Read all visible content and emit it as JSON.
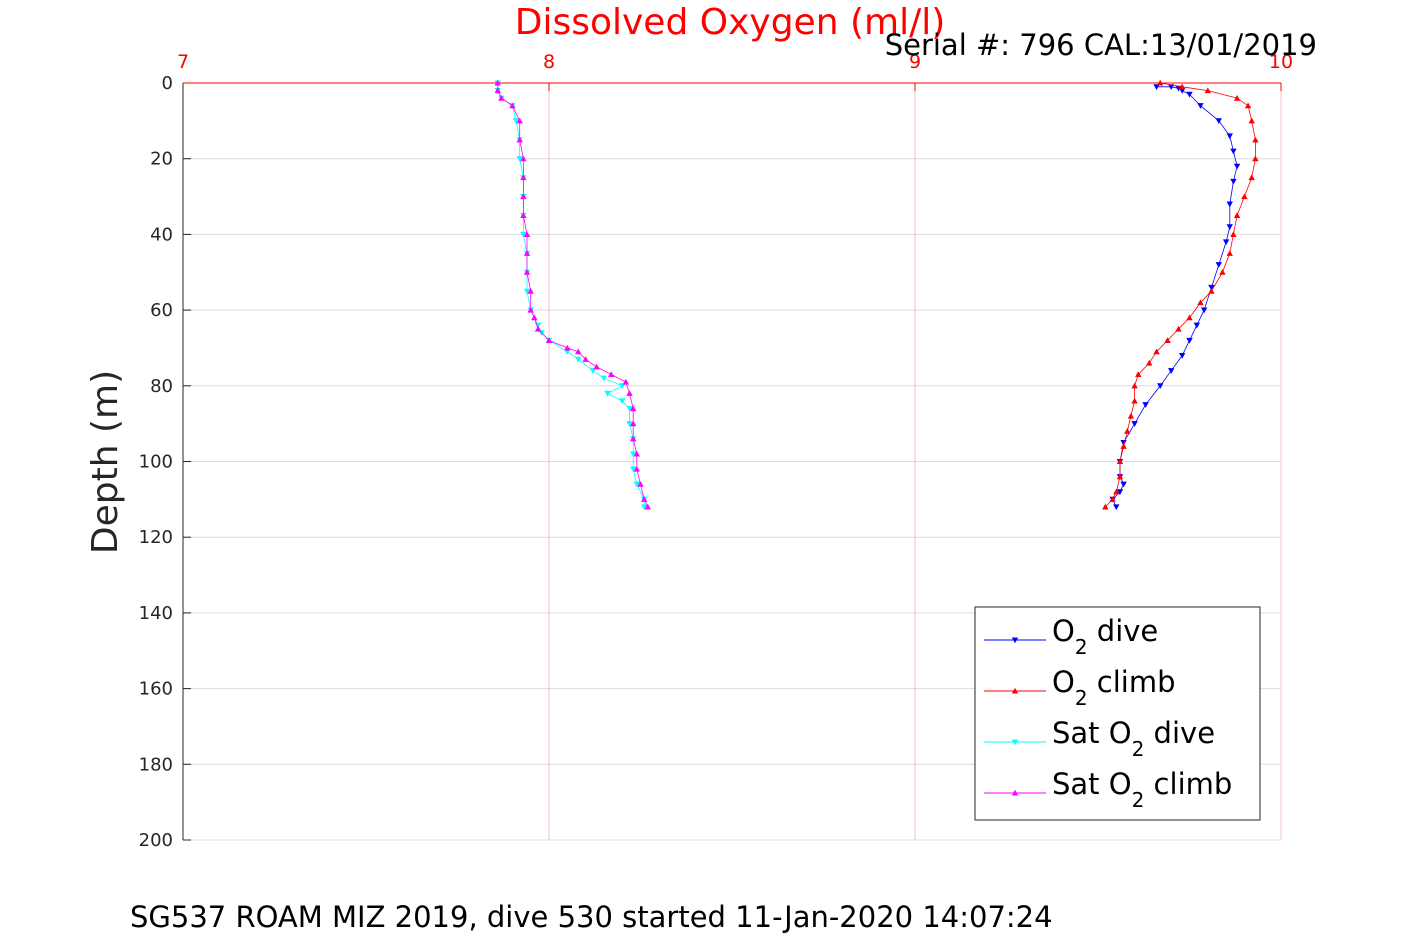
{
  "chart_data": {
    "type": "line",
    "title": "Dissolved Oxygen (ml/l)",
    "subtitle": "Serial #: 796  CAL:13/01/2019",
    "caption": "SG537 ROAM MIZ 2019, dive 530 started 11-Jan-2020 14:07:24",
    "ylabel": "Depth (m)",
    "xlabel": "",
    "xlim": [
      7,
      10
    ],
    "ylim": [
      0,
      200
    ],
    "y_reversed": true,
    "x_axis_position": "top",
    "grid": true,
    "legend_position": "bottom-right",
    "x_ticks": [
      "7",
      "8",
      "9",
      "10"
    ],
    "y_ticks": [
      "0",
      "20",
      "40",
      "60",
      "80",
      "100",
      "120",
      "140",
      "160",
      "180",
      "200"
    ],
    "colors": {
      "title": "#ff0000",
      "x_ticks": "#ff0000",
      "x_grid": "#ffc0c0",
      "y_grid": "#dcdcdc"
    },
    "series": [
      {
        "name": "O2 dive",
        "legend_main": "O",
        "legend_sub": "2",
        "legend_rest": " dive",
        "color": "#0000ff",
        "marker": "triangle-down",
        "points": [
          [
            9.66,
            1.0
          ],
          [
            9.7,
            1.0
          ],
          [
            9.72,
            1.4
          ],
          [
            9.73,
            2.0
          ],
          [
            9.75,
            3.0
          ],
          [
            9.78,
            6.0
          ],
          [
            9.83,
            10.0
          ],
          [
            9.86,
            14.0
          ],
          [
            9.87,
            18.0
          ],
          [
            9.88,
            22.0
          ],
          [
            9.87,
            26.0
          ],
          [
            9.86,
            32.0
          ],
          [
            9.86,
            38.0
          ],
          [
            9.85,
            42.0
          ],
          [
            9.83,
            48.0
          ],
          [
            9.81,
            54.0
          ],
          [
            9.79,
            60.0
          ],
          [
            9.77,
            64.0
          ],
          [
            9.75,
            68.0
          ],
          [
            9.73,
            72.0
          ],
          [
            9.7,
            76.0
          ],
          [
            9.67,
            80.0
          ],
          [
            9.63,
            85.0
          ],
          [
            9.6,
            90.0
          ],
          [
            9.57,
            95.0
          ],
          [
            9.56,
            100.0
          ],
          [
            9.56,
            104.0
          ],
          [
            9.57,
            106.0
          ],
          [
            9.56,
            108.0
          ],
          [
            9.54,
            110.0
          ],
          [
            9.55,
            112.0
          ]
        ]
      },
      {
        "name": "O2 climb",
        "legend_main": "O",
        "legend_sub": "2",
        "legend_rest": " climb",
        "color": "#ff0000",
        "marker": "triangle-up",
        "points": [
          [
            9.52,
            112.0
          ],
          [
            9.54,
            110.0
          ],
          [
            9.55,
            108.0
          ],
          [
            9.56,
            104.0
          ],
          [
            9.56,
            100.0
          ],
          [
            9.57,
            96.0
          ],
          [
            9.58,
            92.0
          ],
          [
            9.59,
            88.0
          ],
          [
            9.6,
            84.0
          ],
          [
            9.6,
            80.0
          ],
          [
            9.61,
            77.0
          ],
          [
            9.64,
            74.0
          ],
          [
            9.66,
            71.0
          ],
          [
            9.69,
            68.0
          ],
          [
            9.72,
            65.0
          ],
          [
            9.75,
            62.0
          ],
          [
            9.78,
            58.0
          ],
          [
            9.81,
            55.0
          ],
          [
            9.84,
            50.0
          ],
          [
            9.86,
            45.0
          ],
          [
            9.87,
            40.0
          ],
          [
            9.88,
            35.0
          ],
          [
            9.9,
            30.0
          ],
          [
            9.92,
            25.0
          ],
          [
            9.93,
            20.0
          ],
          [
            9.93,
            15.0
          ],
          [
            9.92,
            10.0
          ],
          [
            9.91,
            6.0
          ],
          [
            9.88,
            4.0
          ],
          [
            9.8,
            2.0
          ],
          [
            9.73,
            1.0
          ],
          [
            9.67,
            0.0
          ]
        ]
      },
      {
        "name": "Sat O2 dive",
        "legend_main": "Sat O",
        "legend_sub": "2",
        "legend_rest": " dive",
        "color": "#00ffff",
        "marker": "triangle-down",
        "points": [
          [
            7.86,
            0.0
          ],
          [
            7.86,
            2.0
          ],
          [
            7.87,
            4.0
          ],
          [
            7.9,
            6.0
          ],
          [
            7.91,
            10.0
          ],
          [
            7.92,
            15.0
          ],
          [
            7.92,
            20.0
          ],
          [
            7.93,
            25.0
          ],
          [
            7.93,
            30.0
          ],
          [
            7.93,
            35.0
          ],
          [
            7.93,
            40.0
          ],
          [
            7.94,
            45.0
          ],
          [
            7.94,
            50.0
          ],
          [
            7.94,
            55.0
          ],
          [
            7.95,
            60.0
          ],
          [
            7.97,
            64.0
          ],
          [
            7.98,
            66.0
          ],
          [
            8.0,
            68.0
          ],
          [
            8.05,
            71.0
          ],
          [
            8.08,
            73.0
          ],
          [
            8.12,
            76.0
          ],
          [
            8.15,
            78.0
          ],
          [
            8.2,
            80.0
          ],
          [
            8.16,
            82.0
          ],
          [
            8.2,
            84.0
          ],
          [
            8.22,
            86.0
          ],
          [
            8.22,
            90.0
          ],
          [
            8.23,
            94.0
          ],
          [
            8.23,
            98.0
          ],
          [
            8.23,
            102.0
          ],
          [
            8.24,
            106.0
          ],
          [
            8.26,
            110.0
          ],
          [
            8.26,
            112.0
          ]
        ]
      },
      {
        "name": "Sat O2 climb",
        "legend_main": "Sat O",
        "legend_sub": "2",
        "legend_rest": " climb",
        "color": "#ff00ff",
        "marker": "triangle-up",
        "points": [
          [
            8.27,
            112.0
          ],
          [
            8.26,
            110.0
          ],
          [
            8.25,
            106.0
          ],
          [
            8.24,
            102.0
          ],
          [
            8.24,
            98.0
          ],
          [
            8.23,
            94.0
          ],
          [
            8.23,
            90.0
          ],
          [
            8.23,
            86.0
          ],
          [
            8.22,
            82.0
          ],
          [
            8.21,
            79.0
          ],
          [
            8.17,
            77.0
          ],
          [
            8.13,
            75.0
          ],
          [
            8.1,
            73.0
          ],
          [
            8.08,
            71.0
          ],
          [
            8.05,
            70.0
          ],
          [
            8.0,
            68.0
          ],
          [
            7.97,
            65.0
          ],
          [
            7.96,
            62.0
          ],
          [
            7.95,
            60.0
          ],
          [
            7.95,
            55.0
          ],
          [
            7.94,
            50.0
          ],
          [
            7.94,
            45.0
          ],
          [
            7.94,
            40.0
          ],
          [
            7.93,
            35.0
          ],
          [
            7.93,
            30.0
          ],
          [
            7.93,
            25.0
          ],
          [
            7.93,
            20.0
          ],
          [
            7.92,
            15.0
          ],
          [
            7.92,
            10.0
          ],
          [
            7.9,
            6.0
          ],
          [
            7.87,
            4.0
          ],
          [
            7.86,
            2.0
          ],
          [
            7.86,
            0.0
          ]
        ]
      }
    ]
  }
}
